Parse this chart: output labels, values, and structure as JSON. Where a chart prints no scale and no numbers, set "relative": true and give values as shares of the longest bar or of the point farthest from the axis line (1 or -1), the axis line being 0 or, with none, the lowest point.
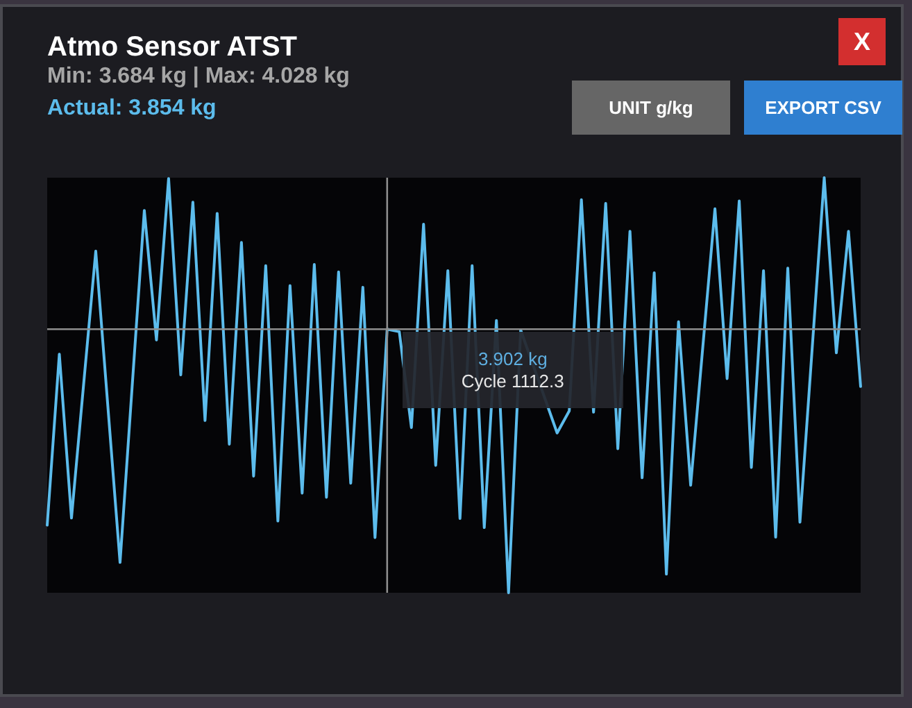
{
  "chart_data": {
    "type": "line",
    "title": "Atmo Sensor ATST",
    "subtitle": "Min: 3.684 kg | Max: 4.028 kg",
    "annotations": [
      "Actual: 3.854 kg",
      "UNIT g/kg",
      "EXPORT CSV",
      "X",
      "Cycle 1112.3"
    ],
    "categories": [
      null,
      null,
      null,
      null,
      null,
      null,
      null,
      null,
      null,
      null,
      null,
      null,
      null,
      null,
      null,
      null,
      null,
      null,
      null,
      null,
      null,
      null,
      null,
      null,
      null,
      null,
      null,
      null,
      null,
      null,
      null,
      null,
      null,
      null,
      null,
      null,
      null,
      null,
      null,
      null,
      null,
      null,
      null,
      null,
      null,
      null,
      null,
      null,
      null,
      null,
      null,
      null,
      null,
      null,
      null,
      null,
      null,
      null,
      null,
      null,
      null,
      null,
      null,
      null,
      null,
      null,
      null,
      null
    ],
    "values": [
      0.163,
      0.575,
      0.18,
      0.502,
      0.823,
      0.448,
      0.073,
      0.498,
      0.921,
      0.609,
      0.998,
      0.525,
      0.941,
      0.415,
      0.914,
      0.358,
      0.844,
      0.281,
      0.788,
      0.173,
      0.74,
      0.24,
      0.791,
      0.23,
      0.773,
      0.264,
      0.736,
      0.133,
      0.635,
      0.629,
      0.398,
      0.888,
      0.307,
      0.776,
      0.179,
      0.788,
      0.157,
      0.656,
      0,
      0.633,
      null,
      null,
      0.385,
      0.438,
      0.947,
      0.435,
      0.938,
      0.347,
      0.871,
      0.277,
      0.771,
      0.045,
      0.653,
      0.259,
      0.592,
      0.925,
      0.516,
      0.944,
      0.302,
      0.776,
      0.134,
      0.782,
      0.17,
      0.585,
      1,
      0.578,
      0.871,
      0.497
    ],
    "color": "#5cbcec",
    "relative": true,
    "ref_lines": [
      {
        "axis": "y",
        "value": 0.635,
        "label": "3.902 kg",
        "color": "#8e8e8e"
      }
    ]
  }
}
